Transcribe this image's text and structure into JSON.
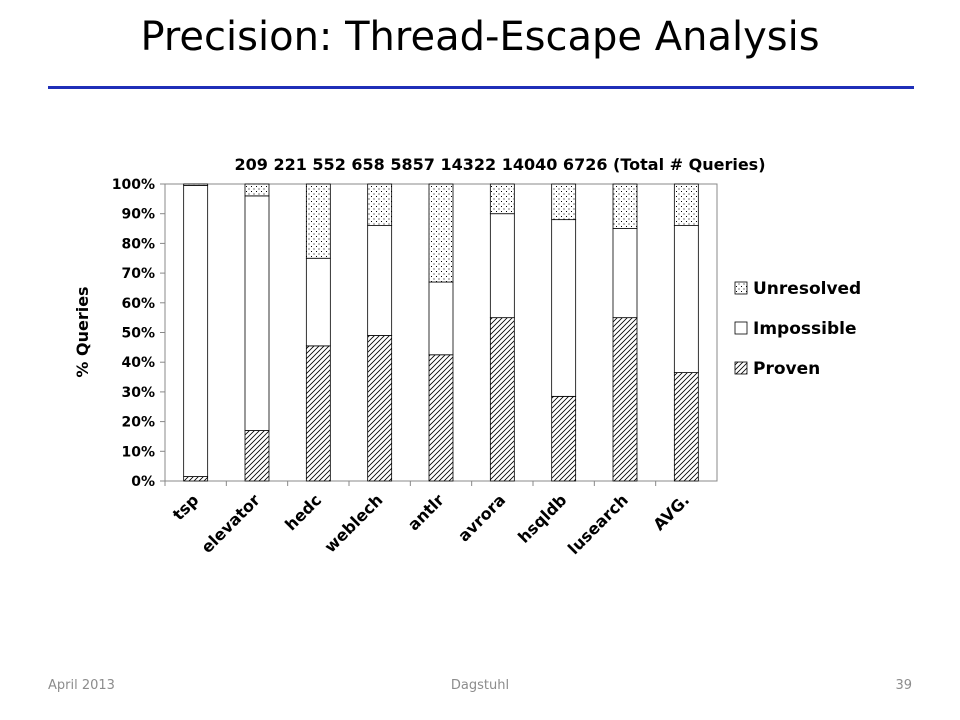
{
  "slide": {
    "title": "Precision: Thread-Escape Analysis",
    "footer_left": "April 2013",
    "footer_center": "Dagstuhl",
    "footer_right": "39",
    "rule_color": "#1f2fb8"
  },
  "chart_data": {
    "type": "bar",
    "stacked": true,
    "title": "209 221 552 658 5857 14322 14040 6726 (Total # Queries)",
    "ylabel": "% Queries",
    "xlabel": "",
    "ylim": [
      0,
      100
    ],
    "yticks": [
      "0%",
      "10%",
      "20%",
      "30%",
      "40%",
      "50%",
      "60%",
      "70%",
      "80%",
      "90%",
      "100%"
    ],
    "categories": [
      "tsp",
      "elevator",
      "hedc",
      "weblech",
      "antlr",
      "avrora",
      "hsqldb",
      "lusearch",
      "AVG."
    ],
    "series": [
      {
        "name": "Proven",
        "pattern": "hatch",
        "values": [
          1.5,
          17,
          45.5,
          49,
          42.5,
          55,
          28.5,
          55,
          36.5
        ]
      },
      {
        "name": "Impossible",
        "pattern": "blank",
        "values": [
          98,
          79,
          29.5,
          37,
          24.5,
          35,
          59.5,
          30,
          49.5
        ]
      },
      {
        "name": "Unresolved",
        "pattern": "dots",
        "values": [
          0.5,
          4,
          25,
          14,
          33,
          10,
          12,
          15,
          14
        ]
      }
    ],
    "legend_position": "right",
    "legend_order": [
      "Unresolved",
      "Impossible",
      "Proven"
    ],
    "grid": false
  }
}
